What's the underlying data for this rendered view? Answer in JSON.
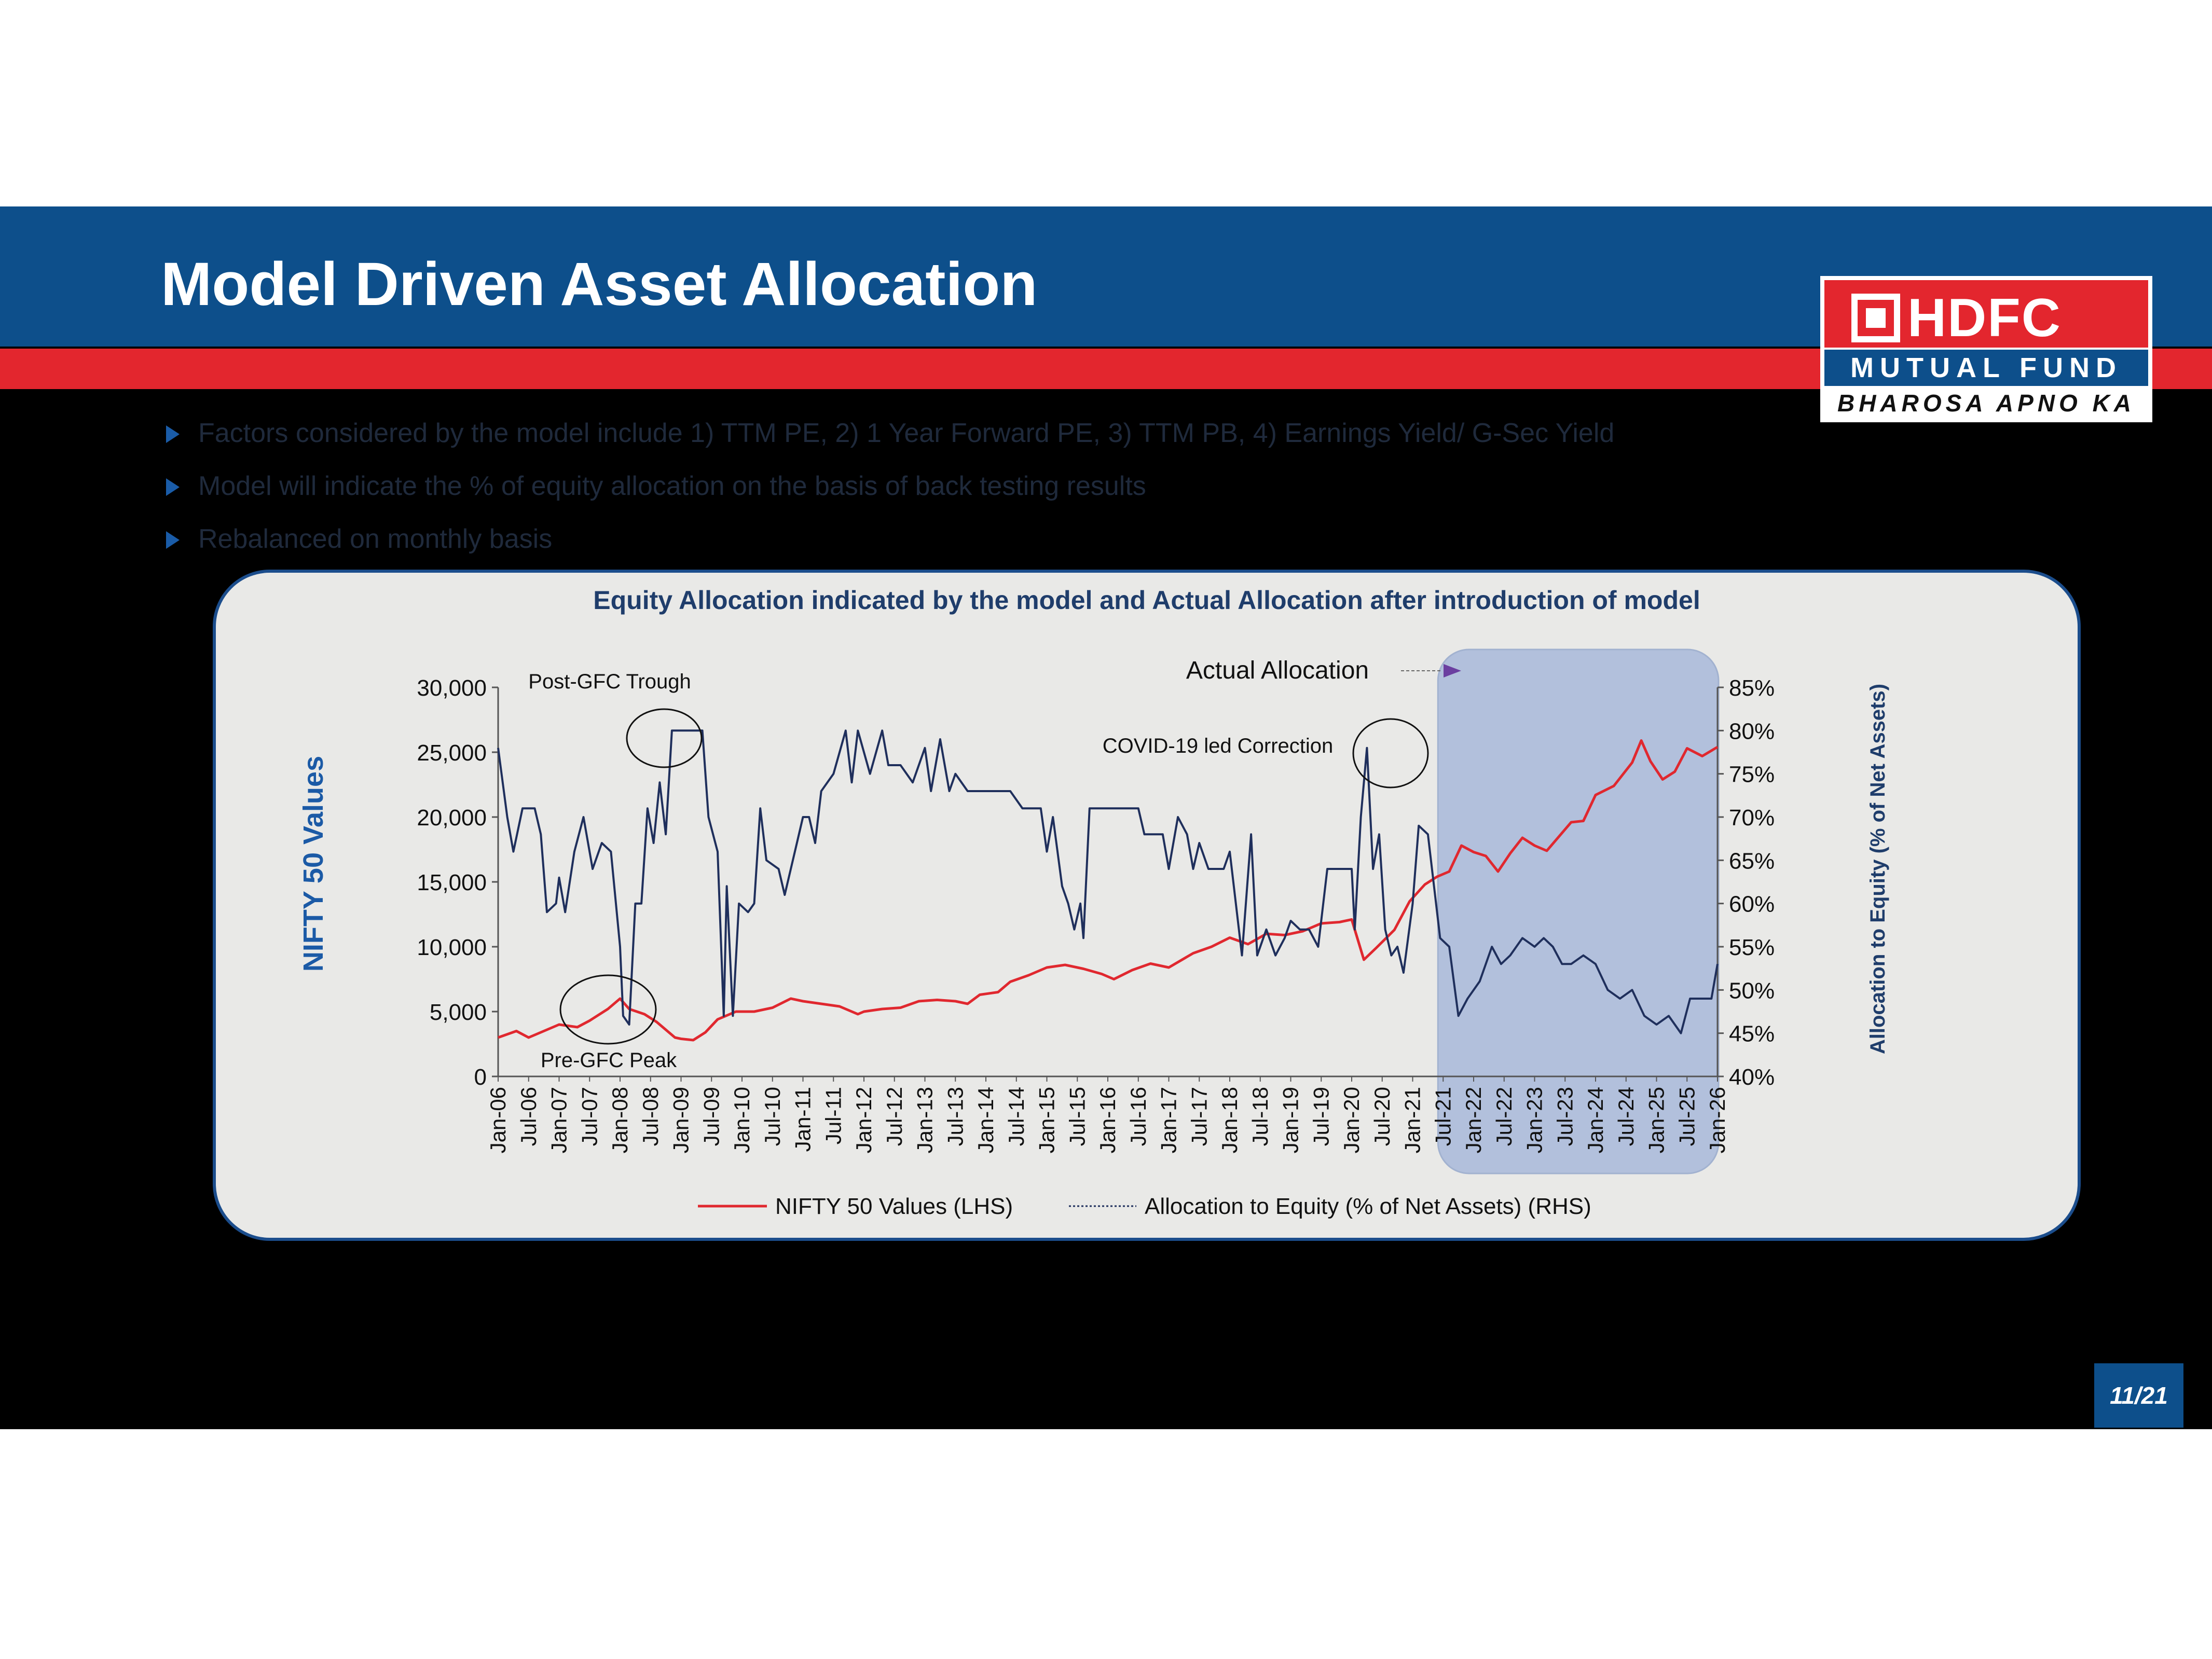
{
  "header": {
    "title": "Model Driven Asset Allocation"
  },
  "logo": {
    "brand": "HDFC",
    "subtitle": "MUTUAL FUND",
    "tagline": "BHAROSA APNO KA"
  },
  "bullets": [
    "Factors considered by the model include 1) TTM PE, 2) 1 Year Forward PE, 3) TTM PB, 4) Earnings Yield/ G-Sec Yield",
    "Model will indicate the % of equity allocation on the basis of back testing results",
    "Rebalanced on monthly basis"
  ],
  "page_number": "11/21",
  "colors": {
    "nifty": "#e0282f",
    "equity": "#1f2f5c",
    "highlight": "#b0bedc",
    "header": "#0d4f8b",
    "red": "#e3262e"
  },
  "chart_data": {
    "type": "line",
    "title": "Equity Allocation indicated by the model and Actual Allocation after introduction of model",
    "ylabel_left": "NIFTY 50 Values",
    "ylabel_right": "Allocation to Equity (% of Net Assets)",
    "yticks_left": [
      "0",
      "5,000",
      "10,000",
      "15,000",
      "20,000",
      "25,000",
      "30,000"
    ],
    "yticks_right": [
      "40%",
      "45%",
      "50%",
      "55%",
      "60%",
      "65%",
      "70%",
      "75%",
      "80%",
      "85%"
    ],
    "ylim_left": [
      0,
      30000
    ],
    "ylim_right": [
      40,
      85
    ],
    "x_start": "Jan-06",
    "x_end": "Jan-26",
    "xticks": [
      "Jan-06",
      "Jul-06",
      "Jan-07",
      "Jul-07",
      "Jan-08",
      "Jul-08",
      "Jan-09",
      "Jul-09",
      "Jan-10",
      "Jul-10",
      "Jan-11",
      "Jul-11",
      "Jan-12",
      "Jul-12",
      "Jan-13",
      "Jul-13",
      "Jan-14",
      "Jul-14",
      "Jan-15",
      "Jul-15",
      "Jan-16",
      "Jul-16",
      "Jan-17",
      "Jul-17",
      "Jan-18",
      "Jul-18",
      "Jan-19",
      "Jul-19",
      "Jan-20",
      "Jul-20",
      "Jan-21",
      "Jul-21",
      "Jan-22",
      "Jul-22",
      "Jan-23",
      "Jul-23",
      "Jan-24",
      "Jul-24",
      "Jan-25",
      "Jul-25",
      "Jan-26"
    ],
    "legend": [
      "NIFTY 50 Values (LHS)",
      "Allocation to Equity (% of Net Assets) (RHS)"
    ],
    "highlight_start": "Jul-21",
    "annotations": {
      "actual_allocation": "Actual Allocation",
      "post_gfc_trough": "Post-GFC Trough",
      "pre_gfc_peak": "Pre-GFC Peak",
      "covid": "COVID-19 led Correction"
    },
    "series": [
      {
        "name": "NIFTY 50 Values (LHS)",
        "axis": "left",
        "points": [
          [
            2006.0,
            3000
          ],
          [
            2006.3,
            3500
          ],
          [
            2006.5,
            3000
          ],
          [
            2006.8,
            3600
          ],
          [
            2007.0,
            4000
          ],
          [
            2007.3,
            3800
          ],
          [
            2007.5,
            4300
          ],
          [
            2007.8,
            5200
          ],
          [
            2008.0,
            6000
          ],
          [
            2008.15,
            5200
          ],
          [
            2008.4,
            4800
          ],
          [
            2008.6,
            4200
          ],
          [
            2008.9,
            3000
          ],
          [
            2009.0,
            2900
          ],
          [
            2009.2,
            2800
          ],
          [
            2009.4,
            3400
          ],
          [
            2009.6,
            4400
          ],
          [
            2009.9,
            5000
          ],
          [
            2010.2,
            5000
          ],
          [
            2010.5,
            5300
          ],
          [
            2010.8,
            6000
          ],
          [
            2011.0,
            5800
          ],
          [
            2011.3,
            5600
          ],
          [
            2011.6,
            5400
          ],
          [
            2011.9,
            4800
          ],
          [
            2012.0,
            5000
          ],
          [
            2012.3,
            5200
          ],
          [
            2012.6,
            5300
          ],
          [
            2012.9,
            5800
          ],
          [
            2013.2,
            5900
          ],
          [
            2013.5,
            5800
          ],
          [
            2013.7,
            5600
          ],
          [
            2013.9,
            6300
          ],
          [
            2014.2,
            6500
          ],
          [
            2014.4,
            7300
          ],
          [
            2014.7,
            7800
          ],
          [
            2015.0,
            8400
          ],
          [
            2015.3,
            8600
          ],
          [
            2015.6,
            8300
          ],
          [
            2015.9,
            7900
          ],
          [
            2016.1,
            7500
          ],
          [
            2016.4,
            8200
          ],
          [
            2016.7,
            8700
          ],
          [
            2017.0,
            8400
          ],
          [
            2017.4,
            9500
          ],
          [
            2017.7,
            10000
          ],
          [
            2018.0,
            10700
          ],
          [
            2018.3,
            10200
          ],
          [
            2018.6,
            11000
          ],
          [
            2018.9,
            10900
          ],
          [
            2019.2,
            11200
          ],
          [
            2019.5,
            11800
          ],
          [
            2019.8,
            11900
          ],
          [
            2020.0,
            12100
          ],
          [
            2020.2,
            9000
          ],
          [
            2020.4,
            9900
          ],
          [
            2020.7,
            11300
          ],
          [
            2020.95,
            13500
          ],
          [
            2021.2,
            14800
          ],
          [
            2021.4,
            15400
          ],
          [
            2021.6,
            15800
          ],
          [
            2021.8,
            17800
          ],
          [
            2022.0,
            17300
          ],
          [
            2022.2,
            17000
          ],
          [
            2022.4,
            15800
          ],
          [
            2022.6,
            17200
          ],
          [
            2022.8,
            18400
          ],
          [
            2023.0,
            17800
          ],
          [
            2023.2,
            17400
          ],
          [
            2023.4,
            18500
          ],
          [
            2023.6,
            19600
          ],
          [
            2023.8,
            19700
          ],
          [
            2024.0,
            21700
          ],
          [
            2024.3,
            22400
          ],
          [
            2024.6,
            24200
          ],
          [
            2024.75,
            25900
          ],
          [
            2024.9,
            24300
          ],
          [
            2025.1,
            22900
          ],
          [
            2025.3,
            23500
          ],
          [
            2025.5,
            25300
          ],
          [
            2025.75,
            24700
          ],
          [
            2026.0,
            25400
          ]
        ]
      },
      {
        "name": "Allocation to Equity (% of Net Assets) (RHS)",
        "axis": "right",
        "points": [
          [
            2006.0,
            78
          ],
          [
            2006.15,
            70
          ],
          [
            2006.25,
            66
          ],
          [
            2006.4,
            71
          ],
          [
            2006.6,
            71
          ],
          [
            2006.7,
            68
          ],
          [
            2006.8,
            59
          ],
          [
            2006.95,
            60
          ],
          [
            2007.0,
            63
          ],
          [
            2007.1,
            59
          ],
          [
            2007.25,
            66
          ],
          [
            2007.4,
            70
          ],
          [
            2007.55,
            64
          ],
          [
            2007.7,
            67
          ],
          [
            2007.85,
            66
          ],
          [
            2008.0,
            55
          ],
          [
            2008.05,
            47
          ],
          [
            2008.15,
            46
          ],
          [
            2008.25,
            60
          ],
          [
            2008.35,
            60
          ],
          [
            2008.45,
            71
          ],
          [
            2008.55,
            67
          ],
          [
            2008.65,
            74
          ],
          [
            2008.75,
            68
          ],
          [
            2008.85,
            80
          ],
          [
            2009.0,
            80
          ],
          [
            2009.2,
            80
          ],
          [
            2009.35,
            80
          ],
          [
            2009.45,
            70
          ],
          [
            2009.6,
            66
          ],
          [
            2009.7,
            47
          ],
          [
            2009.75,
            62
          ],
          [
            2009.85,
            47
          ],
          [
            2009.95,
            60
          ],
          [
            2010.1,
            59
          ],
          [
            2010.2,
            60
          ],
          [
            2010.3,
            71
          ],
          [
            2010.4,
            65
          ],
          [
            2010.6,
            64
          ],
          [
            2010.7,
            61
          ],
          [
            2010.9,
            67
          ],
          [
            2011.0,
            70
          ],
          [
            2011.1,
            70
          ],
          [
            2011.2,
            67
          ],
          [
            2011.3,
            73
          ],
          [
            2011.5,
            75
          ],
          [
            2011.7,
            80
          ],
          [
            2011.8,
            74
          ],
          [
            2011.9,
            80
          ],
          [
            2012.1,
            75
          ],
          [
            2012.3,
            80
          ],
          [
            2012.4,
            76
          ],
          [
            2012.6,
            76
          ],
          [
            2012.8,
            74
          ],
          [
            2013.0,
            78
          ],
          [
            2013.1,
            73
          ],
          [
            2013.25,
            79
          ],
          [
            2013.4,
            73
          ],
          [
            2013.5,
            75
          ],
          [
            2013.7,
            73
          ],
          [
            2014.0,
            73
          ],
          [
            2014.4,
            73
          ],
          [
            2014.6,
            71
          ],
          [
            2014.9,
            71
          ],
          [
            2015.0,
            66
          ],
          [
            2015.1,
            70
          ],
          [
            2015.25,
            62
          ],
          [
            2015.35,
            60
          ],
          [
            2015.45,
            57
          ],
          [
            2015.55,
            60
          ],
          [
            2015.6,
            56
          ],
          [
            2015.7,
            71
          ],
          [
            2016.0,
            71
          ],
          [
            2016.3,
            71
          ],
          [
            2016.5,
            71
          ],
          [
            2016.6,
            68
          ],
          [
            2016.9,
            68
          ],
          [
            2017.0,
            64
          ],
          [
            2017.15,
            70
          ],
          [
            2017.3,
            68
          ],
          [
            2017.4,
            64
          ],
          [
            2017.5,
            67
          ],
          [
            2017.65,
            64
          ],
          [
            2017.9,
            64
          ],
          [
            2018.0,
            66
          ],
          [
            2018.2,
            54
          ],
          [
            2018.35,
            68
          ],
          [
            2018.45,
            54
          ],
          [
            2018.6,
            57
          ],
          [
            2018.75,
            54
          ],
          [
            2018.9,
            56
          ],
          [
            2019.0,
            58
          ],
          [
            2019.15,
            57
          ],
          [
            2019.3,
            57
          ],
          [
            2019.45,
            55
          ],
          [
            2019.6,
            64
          ],
          [
            2019.8,
            64
          ],
          [
            2020.0,
            64
          ],
          [
            2020.05,
            57
          ],
          [
            2020.15,
            70
          ],
          [
            2020.25,
            78
          ],
          [
            2020.35,
            64
          ],
          [
            2020.45,
            68
          ],
          [
            2020.55,
            57
          ],
          [
            2020.65,
            54
          ],
          [
            2020.75,
            55
          ],
          [
            2020.85,
            52
          ],
          [
            2021.0,
            60
          ],
          [
            2021.1,
            69
          ],
          [
            2021.25,
            68
          ],
          [
            2021.45,
            56
          ],
          [
            2021.6,
            55
          ],
          [
            2021.75,
            47
          ],
          [
            2021.9,
            49
          ],
          [
            2022.1,
            51
          ],
          [
            2022.3,
            55
          ],
          [
            2022.45,
            53
          ],
          [
            2022.6,
            54
          ],
          [
            2022.8,
            56
          ],
          [
            2023.0,
            55
          ],
          [
            2023.15,
            56
          ],
          [
            2023.3,
            55
          ],
          [
            2023.45,
            53
          ],
          [
            2023.6,
            53
          ],
          [
            2023.8,
            54
          ],
          [
            2024.0,
            53
          ],
          [
            2024.2,
            50
          ],
          [
            2024.4,
            49
          ],
          [
            2024.6,
            50
          ],
          [
            2024.8,
            47
          ],
          [
            2025.0,
            46
          ],
          [
            2025.2,
            47
          ],
          [
            2025.4,
            45
          ],
          [
            2025.55,
            49
          ],
          [
            2025.7,
            49
          ],
          [
            2025.9,
            49
          ],
          [
            2026.0,
            53
          ]
        ]
      }
    ]
  }
}
